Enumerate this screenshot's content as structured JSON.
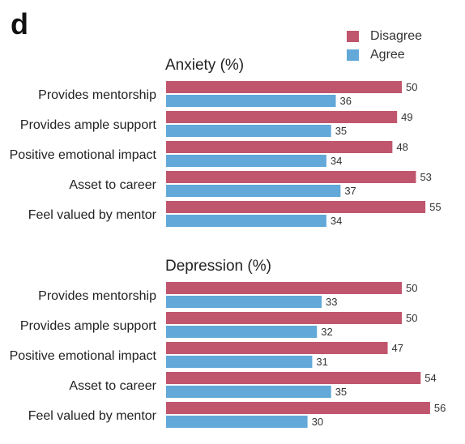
{
  "panel_label": "d",
  "legend": [
    {
      "label": "Disagree",
      "color": "#c0566e"
    },
    {
      "label": "Agree",
      "color": "#62a8d8"
    }
  ],
  "chart_data": [
    {
      "type": "bar",
      "orientation": "horizontal",
      "title": "Anxiety (%)",
      "categories": [
        "Provides mentorship",
        "Provides ample support",
        "Positive emotional impact",
        "Asset to career",
        "Feel valued by mentor"
      ],
      "series": [
        {
          "name": "Disagree",
          "color": "#c0566e",
          "values": [
            50,
            49,
            48,
            53,
            55
          ]
        },
        {
          "name": "Agree",
          "color": "#62a8d8",
          "values": [
            36,
            35,
            34,
            37,
            34
          ]
        }
      ],
      "data_labels": true,
      "grid": false,
      "legend_position": "top-right"
    },
    {
      "type": "bar",
      "orientation": "horizontal",
      "title": "Depression (%)",
      "categories": [
        "Provides mentorship",
        "Provides ample support",
        "Positive emotional impact",
        "Asset to career",
        "Feel valued by mentor"
      ],
      "series": [
        {
          "name": "Disagree",
          "color": "#c0566e",
          "values": [
            50,
            50,
            47,
            54,
            56
          ]
        },
        {
          "name": "Agree",
          "color": "#62a8d8",
          "values": [
            33,
            32,
            31,
            35,
            30
          ]
        }
      ],
      "data_labels": true,
      "grid": false
    }
  ]
}
